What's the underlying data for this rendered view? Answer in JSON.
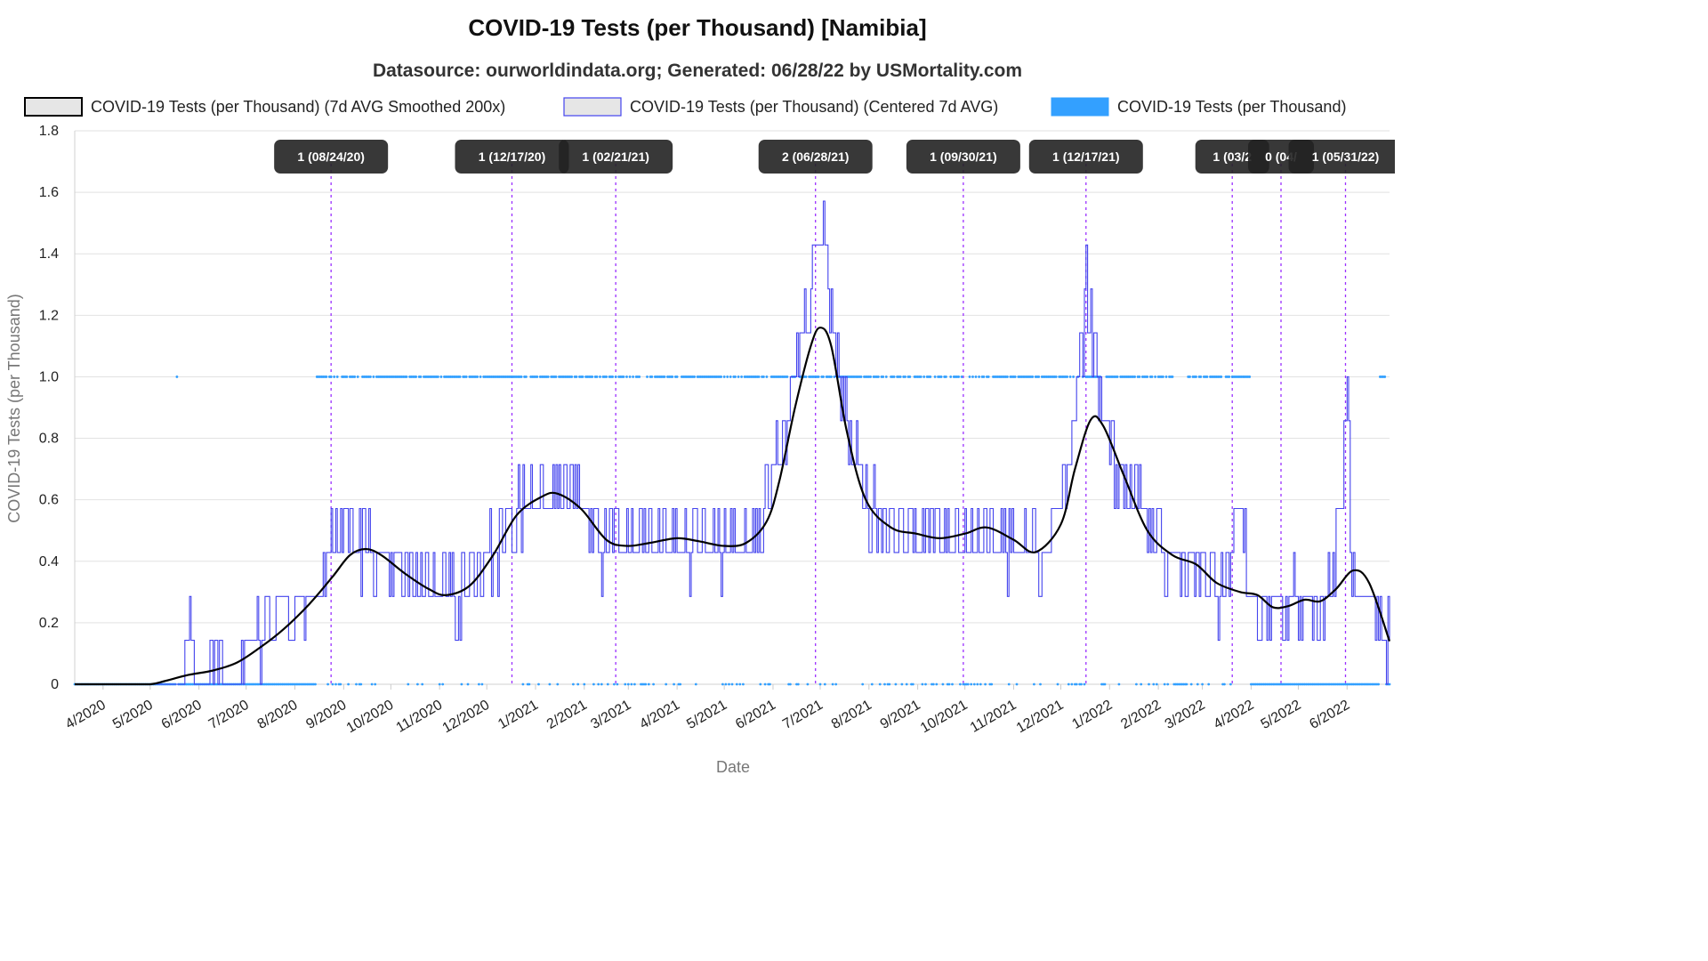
{
  "chart_data": {
    "type": "line",
    "title": "COVID-19 Tests (per Thousand) [Namibia]",
    "subtitle": "Datasource: ourworldindata.org; Generated: 06/28/22 by USMortality.com",
    "xlabel": "Date",
    "ylabel": "COVID-19 Tests (per Thousand)",
    "ylim": [
      0,
      1.8
    ],
    "yticks": [
      "0",
      "0.2",
      "0.4",
      "0.6",
      "0.8",
      "1.0",
      "1.2",
      "1.4",
      "1.6",
      "1.8"
    ],
    "xlim": [
      "2020-03-14",
      "2022-06-28"
    ],
    "xticks": [
      {
        "label": "4/2020",
        "date": "2020-04-01"
      },
      {
        "label": "5/2020",
        "date": "2020-05-01"
      },
      {
        "label": "6/2020",
        "date": "2020-06-01"
      },
      {
        "label": "7/2020",
        "date": "2020-07-01"
      },
      {
        "label": "8/2020",
        "date": "2020-08-01"
      },
      {
        "label": "9/2020",
        "date": "2020-09-01"
      },
      {
        "label": "10/2020",
        "date": "2020-10-01"
      },
      {
        "label": "11/2020",
        "date": "2020-11-01"
      },
      {
        "label": "12/2020",
        "date": "2020-12-01"
      },
      {
        "label": "1/2021",
        "date": "2021-01-01"
      },
      {
        "label": "2/2021",
        "date": "2021-02-01"
      },
      {
        "label": "3/2021",
        "date": "2021-03-01"
      },
      {
        "label": "4/2021",
        "date": "2021-04-01"
      },
      {
        "label": "5/2021",
        "date": "2021-05-01"
      },
      {
        "label": "6/2021",
        "date": "2021-06-01"
      },
      {
        "label": "7/2021",
        "date": "2021-07-01"
      },
      {
        "label": "8/2021",
        "date": "2021-08-01"
      },
      {
        "label": "9/2021",
        "date": "2021-09-01"
      },
      {
        "label": "10/2021",
        "date": "2021-10-01"
      },
      {
        "label": "11/2021",
        "date": "2021-11-01"
      },
      {
        "label": "12/2021",
        "date": "2021-12-01"
      },
      {
        "label": "1/2022",
        "date": "2022-01-01"
      },
      {
        "label": "2/2022",
        "date": "2022-02-01"
      },
      {
        "label": "3/2022",
        "date": "2022-03-01"
      },
      {
        "label": "4/2022",
        "date": "2022-04-01"
      },
      {
        "label": "5/2022",
        "date": "2022-05-01"
      },
      {
        "label": "6/2022",
        "date": "2022-06-01"
      }
    ],
    "grid": true,
    "legend_position": "top",
    "series": [
      {
        "name": "COVID-19 Tests (per Thousand) (7d AVG Smoothed 200x)",
        "color": "#000000",
        "style": "smooth-line",
        "points": [
          [
            "2020-03-14",
            0
          ],
          [
            "2020-04-15",
            0
          ],
          [
            "2020-05-01",
            0.0
          ],
          [
            "2020-05-10",
            0.01
          ],
          [
            "2020-05-25",
            0.03
          ],
          [
            "2020-06-10",
            0.045
          ],
          [
            "2020-06-25",
            0.07
          ],
          [
            "2020-07-10",
            0.12
          ],
          [
            "2020-07-25",
            0.18
          ],
          [
            "2020-08-10",
            0.26
          ],
          [
            "2020-08-25",
            0.35
          ],
          [
            "2020-09-05",
            0.42
          ],
          [
            "2020-09-15",
            0.44
          ],
          [
            "2020-09-25",
            0.42
          ],
          [
            "2020-10-10",
            0.36
          ],
          [
            "2020-10-25",
            0.31
          ],
          [
            "2020-11-05",
            0.29
          ],
          [
            "2020-11-20",
            0.32
          ],
          [
            "2020-12-05",
            0.42
          ],
          [
            "2020-12-20",
            0.55
          ],
          [
            "2021-01-05",
            0.61
          ],
          [
            "2021-01-15",
            0.62
          ],
          [
            "2021-01-30",
            0.57
          ],
          [
            "2021-02-15",
            0.47
          ],
          [
            "2021-02-28",
            0.45
          ],
          [
            "2021-03-15",
            0.46
          ],
          [
            "2021-04-01",
            0.475
          ],
          [
            "2021-04-15",
            0.465
          ],
          [
            "2021-05-01",
            0.45
          ],
          [
            "2021-05-15",
            0.46
          ],
          [
            "2021-05-28",
            0.53
          ],
          [
            "2021-06-05",
            0.66
          ],
          [
            "2021-06-15",
            0.9
          ],
          [
            "2021-06-25",
            1.1
          ],
          [
            "2021-07-01",
            1.16
          ],
          [
            "2021-07-08",
            1.1
          ],
          [
            "2021-07-18",
            0.82
          ],
          [
            "2021-07-30",
            0.6
          ],
          [
            "2021-08-15",
            0.51
          ],
          [
            "2021-08-31",
            0.49
          ],
          [
            "2021-09-15",
            0.475
          ],
          [
            "2021-10-01",
            0.49
          ],
          [
            "2021-10-15",
            0.51
          ],
          [
            "2021-11-01",
            0.47
          ],
          [
            "2021-11-15",
            0.43
          ],
          [
            "2021-12-01",
            0.52
          ],
          [
            "2021-12-10",
            0.7
          ],
          [
            "2021-12-20",
            0.86
          ],
          [
            "2021-12-28",
            0.84
          ],
          [
            "2022-01-10",
            0.68
          ],
          [
            "2022-01-25",
            0.5
          ],
          [
            "2022-02-10",
            0.42
          ],
          [
            "2022-02-25",
            0.39
          ],
          [
            "2022-03-10",
            0.33
          ],
          [
            "2022-03-25",
            0.3
          ],
          [
            "2022-04-05",
            0.29
          ],
          [
            "2022-04-15",
            0.25
          ],
          [
            "2022-04-25",
            0.255
          ],
          [
            "2022-05-05",
            0.275
          ],
          [
            "2022-05-15",
            0.27
          ],
          [
            "2022-05-25",
            0.31
          ],
          [
            "2022-06-05",
            0.37
          ],
          [
            "2022-06-15",
            0.33
          ],
          [
            "2022-06-28",
            0.14
          ]
        ]
      },
      {
        "name": "COVID-19 Tests (per Thousand) (Centered 7d AVG)",
        "color": "#4444ee",
        "style": "step-noise",
        "points": [
          [
            "2020-03-14",
            0
          ],
          [
            "2020-05-20",
            0
          ],
          [
            "2020-05-25",
            0.14
          ],
          [
            "2020-06-01",
            0
          ],
          [
            "2020-06-15",
            0.14
          ],
          [
            "2020-06-20",
            0
          ],
          [
            "2020-07-01",
            0.14
          ],
          [
            "2020-07-10",
            0.14
          ],
          [
            "2020-07-20",
            0.28
          ],
          [
            "2020-08-01",
            0.28
          ],
          [
            "2020-08-15",
            0.3
          ],
          [
            "2020-08-20",
            0.43
          ],
          [
            "2020-09-01",
            0.5
          ],
          [
            "2020-09-15",
            0.45
          ],
          [
            "2020-10-01",
            0.35
          ],
          [
            "2020-10-20",
            0.35
          ],
          [
            "2020-11-10",
            0.3
          ],
          [
            "2020-11-25",
            0.35
          ],
          [
            "2020-12-10",
            0.45
          ],
          [
            "2020-12-25",
            0.6
          ],
          [
            "2021-01-10",
            0.64
          ],
          [
            "2021-01-25",
            0.62
          ],
          [
            "2021-02-10",
            0.46
          ],
          [
            "2021-03-01",
            0.45
          ],
          [
            "2021-04-01",
            0.47
          ],
          [
            "2021-05-01",
            0.45
          ],
          [
            "2021-05-20",
            0.5
          ],
          [
            "2021-06-05",
            0.7
          ],
          [
            "2021-06-20",
            1.1
          ],
          [
            "2021-06-28",
            1.4
          ],
          [
            "2021-07-02",
            1.5
          ],
          [
            "2021-07-10",
            1.1
          ],
          [
            "2021-07-20",
            0.8
          ],
          [
            "2021-08-01",
            0.55
          ],
          [
            "2021-09-01",
            0.49
          ],
          [
            "2021-10-01",
            0.5
          ],
          [
            "2021-11-01",
            0.46
          ],
          [
            "2021-11-20",
            0.45
          ],
          [
            "2021-12-05",
            0.7
          ],
          [
            "2021-12-17",
            1.28
          ],
          [
            "2021-12-24",
            1.0
          ],
          [
            "2022-01-05",
            0.7
          ],
          [
            "2022-01-20",
            0.6
          ],
          [
            "2022-02-01",
            0.4
          ],
          [
            "2022-02-15",
            0.42
          ],
          [
            "2022-03-01",
            0.38
          ],
          [
            "2022-03-15",
            0.3
          ],
          [
            "2022-03-25",
            0.6
          ],
          [
            "2022-04-01",
            0.25
          ],
          [
            "2022-04-15",
            0.2
          ],
          [
            "2022-04-28",
            0.3
          ],
          [
            "2022-05-15",
            0.25
          ],
          [
            "2022-05-25",
            0.45
          ],
          [
            "2022-06-01",
            0.9
          ],
          [
            "2022-06-05",
            0.25
          ],
          [
            "2022-06-28",
            0.14
          ]
        ]
      },
      {
        "name": "COVID-19 Tests (per Thousand)",
        "color": "#33a0ff",
        "style": "dots",
        "values_observed": [
          0,
          1
        ],
        "one_value_dates": [
          "2020-05-18",
          "2020-08-15..2021-06-20",
          "2021-06-20..2022-02-10",
          "2022-02-20..2022-03-31",
          "2022-06-22..2022-06-28"
        ]
      }
    ],
    "annotations": [
      {
        "label": "1 (08/24/20)",
        "date": "2020-08-24"
      },
      {
        "label": "1 (12/17/20)",
        "date": "2020-12-17"
      },
      {
        "label": "1 (02/21/21)",
        "date": "2021-02-21"
      },
      {
        "label": "2 (06/28/21)",
        "date": "2021-06-28"
      },
      {
        "label": "1 (09/30/21)",
        "date": "2021-09-30"
      },
      {
        "label": "1 (12/17/21)",
        "date": "2021-12-17"
      },
      {
        "label": "1 (03/2",
        "date": "2022-03-20"
      },
      {
        "label": "0 (04/",
        "date": "2022-04-20"
      },
      {
        "label": "1 (05/31/22)",
        "date": "2022-05-31"
      }
    ]
  }
}
